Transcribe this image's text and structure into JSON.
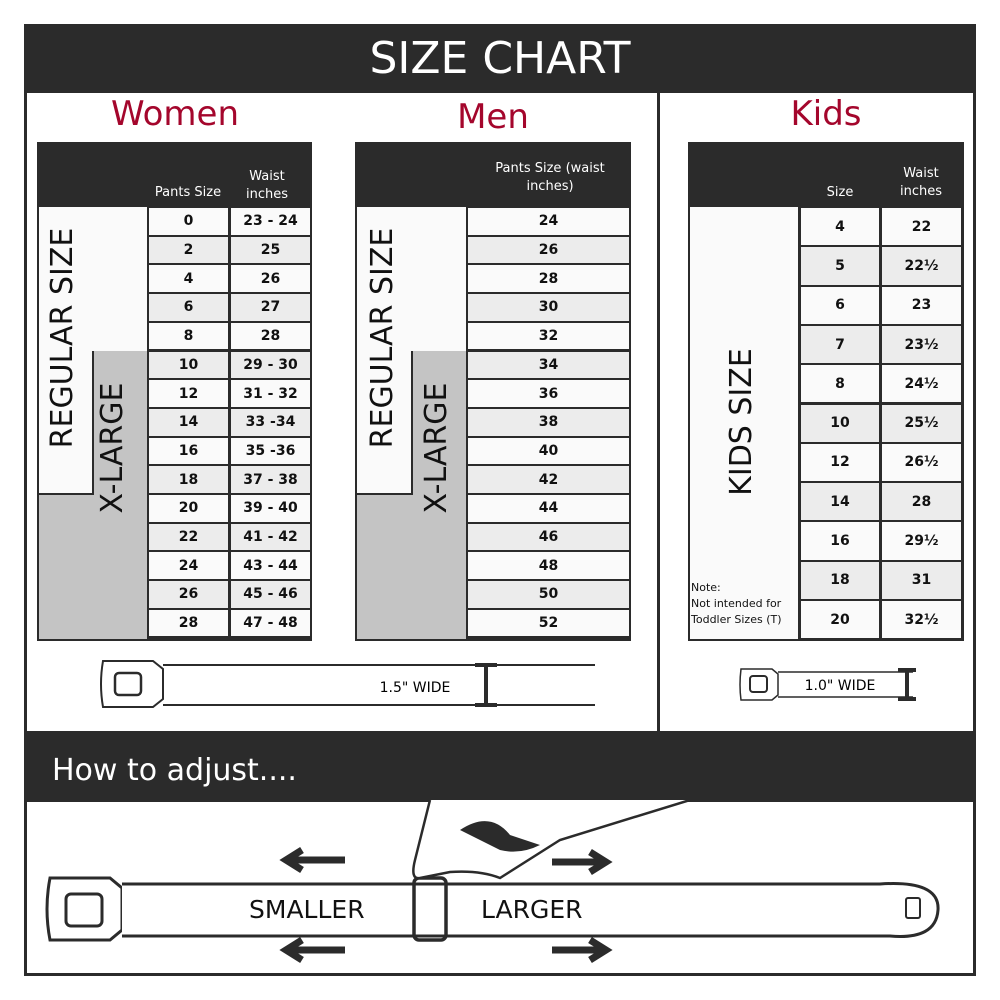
{
  "title": "SIZE CHART",
  "women": {
    "title": "Women",
    "col1": "Pants Size",
    "col2": "Waist inches",
    "regular_label": "REGULAR SIZE",
    "xlarge_label": "X-LARGE",
    "rows": [
      [
        "0",
        "23 - 24"
      ],
      [
        "2",
        "25"
      ],
      [
        "4",
        "26"
      ],
      [
        "6",
        "27"
      ],
      [
        "8",
        "28"
      ],
      [
        "10",
        "29 - 30"
      ],
      [
        "12",
        "31 - 32"
      ],
      [
        "14",
        "33 -34"
      ],
      [
        "16",
        "35 -36"
      ],
      [
        "18",
        "37 - 38"
      ],
      [
        "20",
        "39 - 40"
      ],
      [
        "22",
        "41 - 42"
      ],
      [
        "24",
        "43 - 44"
      ],
      [
        "26",
        "45 - 46"
      ],
      [
        "28",
        "47 - 48"
      ]
    ]
  },
  "men": {
    "title": "Men",
    "col1": "Pants Size (waist inches)",
    "regular_label": "REGULAR SIZE",
    "xlarge_label": "X-LARGE",
    "rows": [
      "24",
      "26",
      "28",
      "30",
      "32",
      "34",
      "36",
      "38",
      "40",
      "42",
      "44",
      "46",
      "48",
      "50",
      "52"
    ]
  },
  "kids": {
    "title": "Kids",
    "col1": "Size",
    "col2": "Waist inches",
    "label": "KIDS SIZE",
    "note_title": "Note:",
    "note_text": "Not intended for Toddler Sizes (T)",
    "rows": [
      [
        "4",
        "22"
      ],
      [
        "5",
        "22½"
      ],
      [
        "6",
        "23"
      ],
      [
        "7",
        "23½"
      ],
      [
        "8",
        "24½"
      ],
      [
        "10",
        "25½"
      ],
      [
        "12",
        "26½"
      ],
      [
        "14",
        "28"
      ],
      [
        "16",
        "29½"
      ],
      [
        "18",
        "31"
      ],
      [
        "20",
        "32½"
      ]
    ]
  },
  "belt_adult_width": "1.5\" WIDE",
  "belt_kids_width": "1.0\" WIDE",
  "adjust": {
    "title": "How to adjust....",
    "smaller": "SMALLER",
    "larger": "LARGER"
  },
  "colors": {
    "dark": "#2b2b2b",
    "accent": "#a4062c",
    "xlarge": "#c4c4c4"
  }
}
